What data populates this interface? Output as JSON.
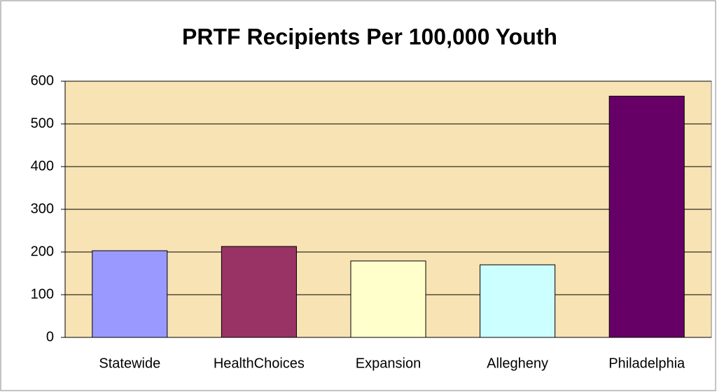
{
  "chart_data": {
    "type": "bar",
    "title": "PRTF Recipients Per 100,000 Youth",
    "categories": [
      "Statewide",
      "HealthChoices",
      "Expansion",
      "Allegheny",
      "Philadelphia"
    ],
    "values": [
      203,
      213,
      179,
      170,
      565
    ],
    "colors": [
      "#9999ff",
      "#993366",
      "#ffffcc",
      "#ccffff",
      "#660066"
    ],
    "ylim": [
      0,
      600
    ],
    "yticks": [
      0,
      100,
      200,
      300,
      400,
      500,
      600
    ],
    "grid": true
  }
}
